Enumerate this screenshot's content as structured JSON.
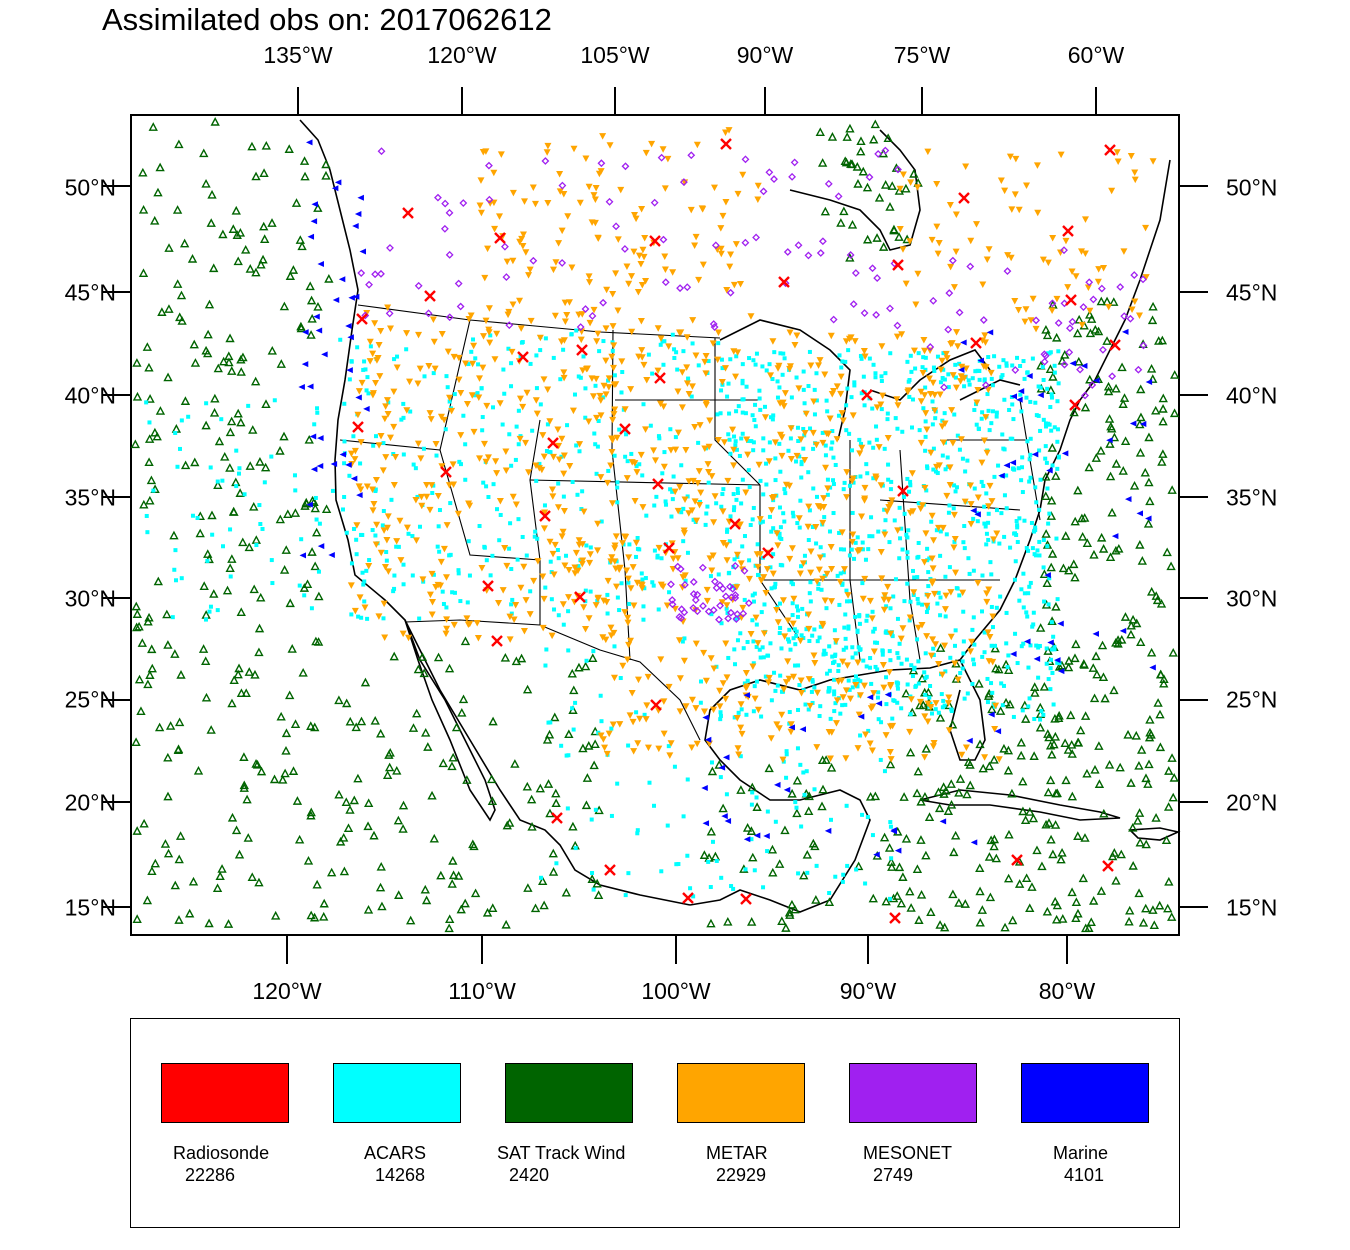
{
  "title": "Assimilated obs on: 2017062612",
  "top_lon_labels": [
    "135°W",
    "120°W",
    "105°W",
    "90°W",
    "75°W",
    "60°W"
  ],
  "bottom_lon_labels": [
    "120°W",
    "110°W",
    "100°W",
    "90°W",
    "80°W"
  ],
  "lat_labels": [
    "50°N",
    "45°N",
    "40°N",
    "35°N",
    "30°N",
    "25°N",
    "20°N",
    "15°N"
  ],
  "colors": {
    "radiosonde": "#ff0000",
    "acars": "#00ffff",
    "sat_track_wind": "#006400",
    "metar": "#ffa500",
    "mesonet": "#a020f0",
    "marine": "#0000ff",
    "coastline": "#000000"
  },
  "legend": [
    {
      "name": "Radiosonde",
      "count": "22286",
      "color": "#ff0000"
    },
    {
      "name": "ACARS",
      "count": "14268",
      "color": "#00ffff"
    },
    {
      "name": "SAT Track Wind",
      "count": "2420",
      "color": "#006400"
    },
    {
      "name": "METAR",
      "count": "22929",
      "color": "#ffa500"
    },
    {
      "name": "MESONET",
      "count": "2749",
      "color": "#a020f0"
    },
    {
      "name": "Marine",
      "count": "4101",
      "color": "#0000ff"
    }
  ]
}
